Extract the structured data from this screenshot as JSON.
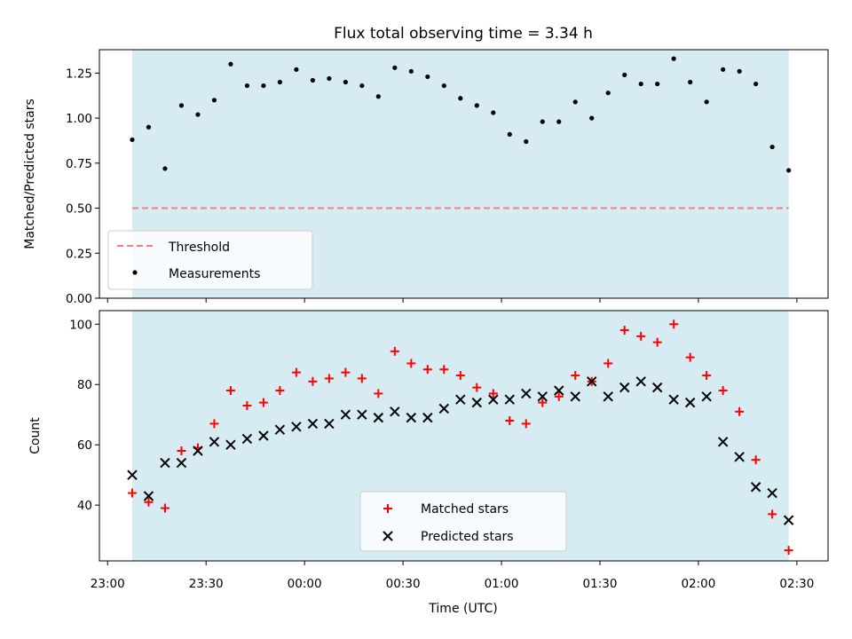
{
  "title": "Flux total observing time = 3.34 h",
  "colors": {
    "shade": "#add8e6",
    "threshold": "#f08080",
    "measurement": "#000000",
    "matched": "#ff0000",
    "predicted": "#000000"
  },
  "time_axis": {
    "label": "Time (UTC)",
    "ticks": [
      "23:00",
      "23:30",
      "00:00",
      "00:30",
      "01:00",
      "01:30",
      "02:00",
      "02:30"
    ],
    "tick_minutes": [
      0,
      30,
      60,
      90,
      120,
      150,
      180,
      210
    ],
    "xlim_minutes": [
      -2.5,
      219.5
    ],
    "shade_minutes": [
      7.5,
      207.5
    ]
  },
  "chart_data": [
    {
      "type": "scatter",
      "ylabel": "Matched/Predicted stars",
      "ylim": [
        0,
        1.38
      ],
      "yticks": [
        "0.00",
        "0.25",
        "0.50",
        "0.75",
        "1.00",
        "1.25"
      ],
      "ytick_values": [
        0,
        0.25,
        0.5,
        0.75,
        1.0,
        1.25
      ],
      "legend_position": "lower-left",
      "threshold": {
        "name": "Threshold",
        "value": 0.5
      },
      "series": [
        {
          "name": "Measurements",
          "x": [
            7.5,
            12.5,
            17.5,
            22.5,
            27.5,
            32.5,
            37.5,
            42.5,
            47.5,
            52.5,
            57.5,
            62.5,
            67.5,
            72.5,
            77.5,
            82.5,
            87.5,
            92.5,
            97.5,
            102.5,
            107.5,
            112.5,
            117.5,
            122.5,
            127.5,
            132.5,
            137.5,
            142.5,
            147.5,
            152.5,
            157.5,
            162.5,
            167.5,
            172.5,
            177.5,
            182.5,
            187.5,
            192.5,
            197.5,
            202.5,
            207.5
          ],
          "y": [
            0.88,
            0.95,
            0.72,
            1.07,
            1.02,
            1.1,
            1.3,
            1.18,
            1.18,
            1.2,
            1.27,
            1.21,
            1.22,
            1.2,
            1.18,
            1.12,
            1.28,
            1.26,
            1.23,
            1.18,
            1.11,
            1.07,
            1.03,
            0.91,
            0.87,
            0.98,
            0.98,
            1.09,
            1.0,
            1.14,
            1.24,
            1.19,
            1.19,
            1.33,
            1.2,
            1.09,
            1.27,
            1.26,
            1.19,
            0.84,
            0.71
          ]
        }
      ]
    },
    {
      "type": "scatter",
      "xlabel": "Time (UTC)",
      "ylabel": "Count",
      "ylim": [
        21.5,
        104.5
      ],
      "yticks": [
        "40",
        "60",
        "80",
        "100"
      ],
      "ytick_values": [
        40,
        60,
        80,
        100
      ],
      "legend_position": "lower-center",
      "series": [
        {
          "name": "Matched stars",
          "marker": "+",
          "x": [
            7.5,
            12.5,
            17.5,
            22.5,
            27.5,
            32.5,
            37.5,
            42.5,
            47.5,
            52.5,
            57.5,
            62.5,
            67.5,
            72.5,
            77.5,
            82.5,
            87.5,
            92.5,
            97.5,
            102.5,
            107.5,
            112.5,
            117.5,
            122.5,
            127.5,
            132.5,
            137.5,
            142.5,
            147.5,
            152.5,
            157.5,
            162.5,
            167.5,
            172.5,
            177.5,
            182.5,
            187.5,
            192.5,
            197.5,
            202.5,
            207.5
          ],
          "y": [
            44,
            41,
            39,
            58,
            59,
            67,
            78,
            73,
            74,
            78,
            84,
            81,
            82,
            84,
            82,
            77,
            91,
            87,
            85,
            85,
            83,
            79,
            77,
            68,
            67,
            74,
            76,
            83,
            81,
            87,
            98,
            96,
            94,
            100,
            89,
            83,
            78,
            71,
            55,
            37,
            25
          ]
        },
        {
          "name": "Predicted stars",
          "marker": "x",
          "x": [
            7.5,
            12.5,
            17.5,
            22.5,
            27.5,
            32.5,
            37.5,
            42.5,
            47.5,
            52.5,
            57.5,
            62.5,
            67.5,
            72.5,
            77.5,
            82.5,
            87.5,
            92.5,
            97.5,
            102.5,
            107.5,
            112.5,
            117.5,
            122.5,
            127.5,
            132.5,
            137.5,
            142.5,
            147.5,
            152.5,
            157.5,
            162.5,
            167.5,
            172.5,
            177.5,
            182.5,
            187.5,
            192.5,
            197.5,
            202.5,
            207.5
          ],
          "y": [
            50,
            43,
            54,
            54,
            58,
            61,
            60,
            62,
            63,
            65,
            66,
            67,
            67,
            70,
            70,
            69,
            71,
            69,
            69,
            72,
            75,
            74,
            75,
            75,
            77,
            76,
            78,
            76,
            81,
            76,
            79,
            81,
            79,
            75,
            74,
            76,
            61,
            56,
            46,
            44,
            35
          ]
        }
      ]
    }
  ]
}
